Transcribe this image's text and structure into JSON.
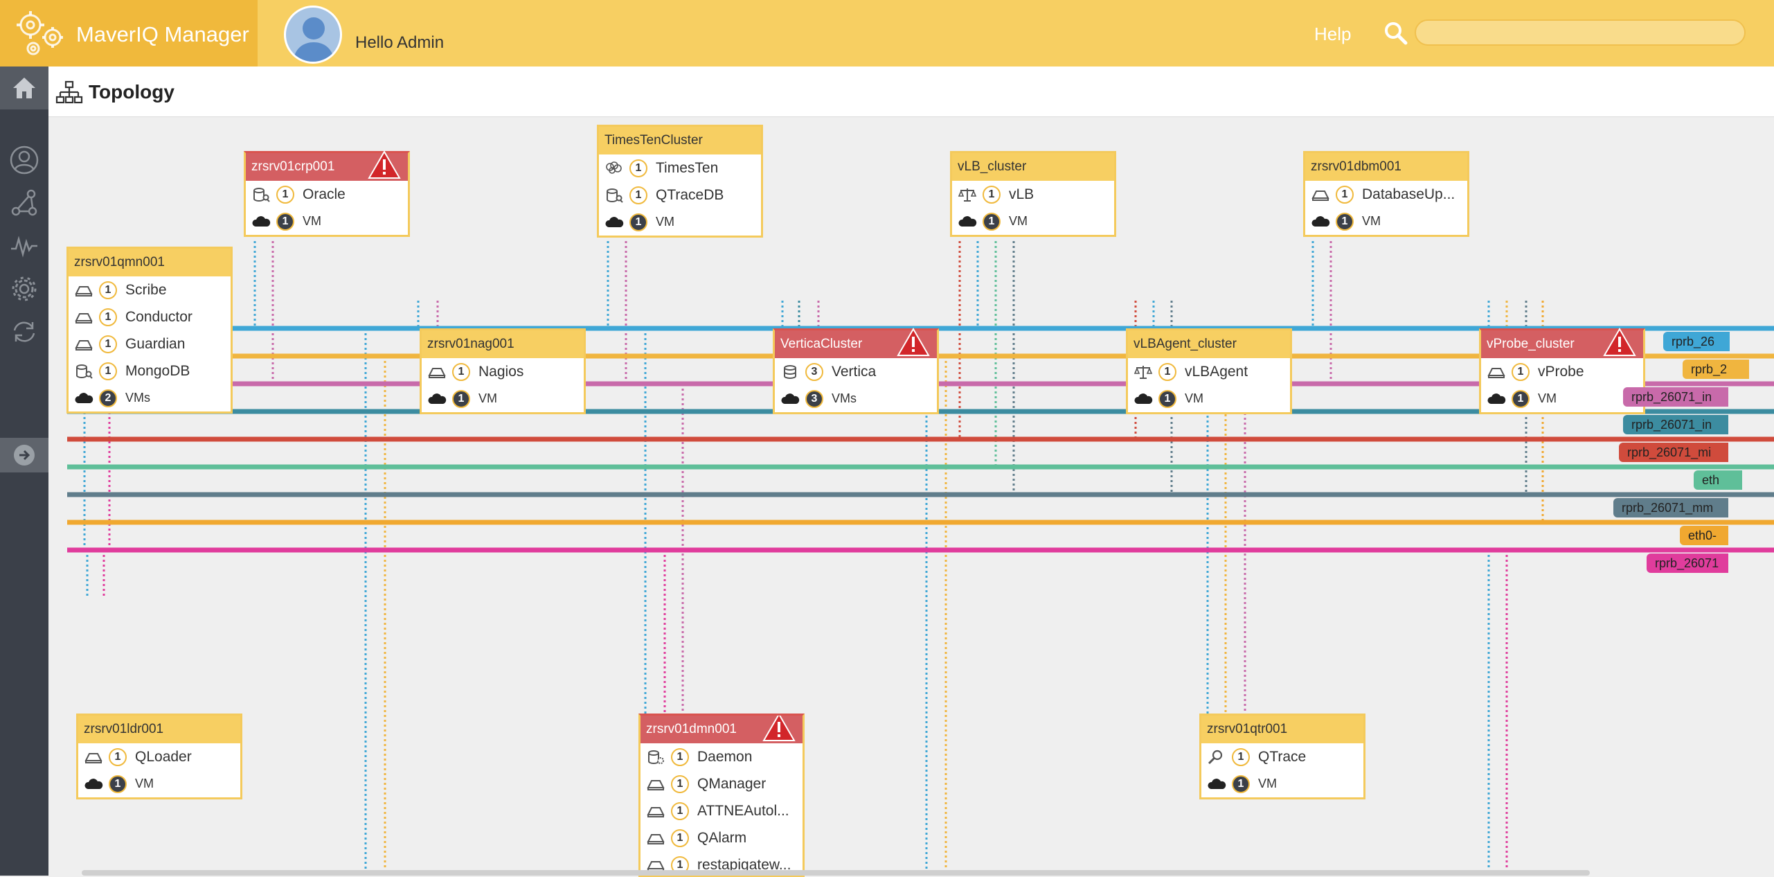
{
  "app": {
    "title": "MaverIQ Manager",
    "greeting": "Hello Admin",
    "help": "Help",
    "search": {
      "value": "",
      "placeholder": ""
    }
  },
  "page": {
    "title": "Topology"
  },
  "sidebar": {
    "items": [
      "home-icon",
      "user-icon",
      "topology-icon",
      "metrics-icon",
      "settings-icon",
      "sync-icon",
      "expand-icon"
    ]
  },
  "colors": {
    "header": "#f7cf62",
    "brand": "#f0b93c",
    "sidebar": "#3b4049",
    "node_header": "#f7cf62",
    "alert_header": "#d45f62"
  },
  "nodes": [
    {
      "id": "zrsrv01crp001",
      "title": "zrsrv01crp001",
      "alert": true,
      "rows": [
        {
          "icon": "db-search-icon",
          "count": "1",
          "label": "Oracle"
        },
        {
          "icon": "cloud-icon",
          "count": "1",
          "label": "VM",
          "vm": true
        }
      ]
    },
    {
      "id": "TimesTenCluster",
      "title": "TimesTenCluster",
      "alert": false,
      "rows": [
        {
          "icon": "brain-icon",
          "count": "1",
          "label": "TimesTen"
        },
        {
          "icon": "db-search-icon",
          "count": "1",
          "label": "QTraceDB"
        },
        {
          "icon": "cloud-icon",
          "count": "1",
          "label": "VM",
          "vm": true
        }
      ]
    },
    {
      "id": "vLB_cluster",
      "title": "vLB_cluster",
      "alert": false,
      "rows": [
        {
          "icon": "balance-icon",
          "count": "1",
          "label": "vLB"
        },
        {
          "icon": "cloud-icon",
          "count": "1",
          "label": "VM",
          "vm": true
        }
      ]
    },
    {
      "id": "zrsrv01dbm001",
      "title": "zrsrv01dbm001",
      "alert": false,
      "rows": [
        {
          "icon": "drive-icon",
          "count": "1",
          "label": "DatabaseUp..."
        },
        {
          "icon": "cloud-icon",
          "count": "1",
          "label": "VM",
          "vm": true
        }
      ]
    },
    {
      "id": "zrsrv01qmn001",
      "title": "zrsrv01qmn001",
      "alert": false,
      "rows": [
        {
          "icon": "drive-icon",
          "count": "1",
          "label": "Scribe"
        },
        {
          "icon": "drive-icon",
          "count": "1",
          "label": "Conductor"
        },
        {
          "icon": "drive-icon",
          "count": "1",
          "label": "Guardian"
        },
        {
          "icon": "db-search-icon",
          "count": "1",
          "label": "MongoDB"
        },
        {
          "icon": "cloud-icon",
          "count": "2",
          "label": "VMs",
          "vm": true
        }
      ]
    },
    {
      "id": "zrsrv01nag001",
      "title": "zrsrv01nag001",
      "alert": false,
      "rows": [
        {
          "icon": "drive-icon",
          "count": "1",
          "label": "Nagios"
        },
        {
          "icon": "cloud-icon",
          "count": "1",
          "label": "VM",
          "vm": true
        }
      ]
    },
    {
      "id": "VerticaCluster",
      "title": "VerticaCluster",
      "alert": true,
      "rows": [
        {
          "icon": "database-icon",
          "count": "3",
          "label": "Vertica"
        },
        {
          "icon": "cloud-icon",
          "count": "3",
          "label": "VMs",
          "vm": true
        }
      ]
    },
    {
      "id": "vLBAgent_cluster",
      "title": "vLBAgent_cluster",
      "alert": false,
      "rows": [
        {
          "icon": "balance-icon",
          "count": "1",
          "label": "vLBAgent"
        },
        {
          "icon": "cloud-icon",
          "count": "1",
          "label": "VM",
          "vm": true
        }
      ]
    },
    {
      "id": "vProbe_cluster",
      "title": "vProbe_cluster",
      "alert": true,
      "rows": [
        {
          "icon": "drive-icon",
          "count": "1",
          "label": "vProbe"
        },
        {
          "icon": "cloud-icon",
          "count": "1",
          "label": "VM",
          "vm": true
        }
      ]
    },
    {
      "id": "zrsrv01ldr001",
      "title": "zrsrv01ldr001",
      "alert": false,
      "rows": [
        {
          "icon": "drive-icon",
          "count": "1",
          "label": "QLoader"
        },
        {
          "icon": "cloud-icon",
          "count": "1",
          "label": "VM",
          "vm": true
        }
      ]
    },
    {
      "id": "zrsrv01dmn001",
      "title": "zrsrv01dmn001",
      "alert": true,
      "rows": [
        {
          "icon": "db-gear-icon",
          "count": "1",
          "label": "Daemon"
        },
        {
          "icon": "drive-icon",
          "count": "1",
          "label": "QManager"
        },
        {
          "icon": "drive-icon",
          "count": "1",
          "label": "ATTNEAutol..."
        },
        {
          "icon": "drive-icon",
          "count": "1",
          "label": "QAlarm"
        },
        {
          "icon": "drive-icon",
          "count": "1",
          "label": "restapigatew..."
        }
      ]
    },
    {
      "id": "zrsrv01qtr001",
      "title": "zrsrv01qtr001",
      "alert": false,
      "rows": [
        {
          "icon": "magnifier-icon",
          "count": "1",
          "label": "QTrace"
        },
        {
          "icon": "cloud-icon",
          "count": "1",
          "label": "VM",
          "vm": true
        }
      ]
    }
  ],
  "networks": [
    {
      "label": "rprb_26",
      "color": "#3fa7d6"
    },
    {
      "label": "rprb_2",
      "color": "#f0b53f"
    },
    {
      "label": "rprb_26071_in",
      "color": "#c86aaa"
    },
    {
      "label": "rprb_26071_in",
      "color": "#3c8ca0"
    },
    {
      "label": "rprb_26071_mi",
      "color": "#d04b3c"
    },
    {
      "label": "eth",
      "color": "#5fbf99"
    },
    {
      "label": "rprb_26071_mm",
      "color": "#607d8b"
    },
    {
      "label": "eth0-",
      "color": "#f0a830"
    },
    {
      "label": "rprb_26071",
      "color": "#e03c9c"
    }
  ]
}
